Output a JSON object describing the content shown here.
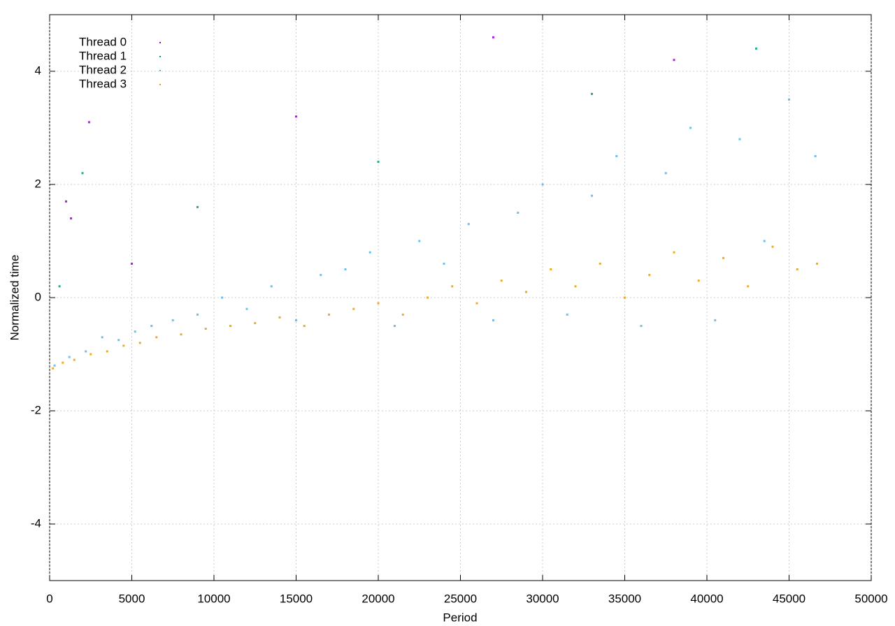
{
  "chart_data": {
    "type": "scatter",
    "xlabel": "Period",
    "ylabel": "Normalized time",
    "xlim": [
      0,
      50000
    ],
    "ylim": [
      -5,
      5
    ],
    "xticks": [
      0,
      5000,
      10000,
      15000,
      20000,
      25000,
      30000,
      35000,
      40000,
      45000,
      50000
    ],
    "yticks": [
      -4,
      -2,
      0,
      2,
      4
    ],
    "grid": true,
    "legend": "top left",
    "series": [
      {
        "name": "Thread 0",
        "color": "#9400d3",
        "x": [
          1000,
          1300,
          2400,
          5000,
          15000,
          27000,
          38000
        ],
        "values": [
          1.7,
          1.4,
          3.1,
          0.6,
          3.2,
          4.6,
          4.2
        ]
      },
      {
        "name": "Thread 1",
        "color": "#009e73",
        "x": [
          600,
          2000,
          9000,
          20000,
          33000,
          43000
        ],
        "values": [
          0.2,
          2.2,
          1.6,
          2.4,
          3.6,
          4.4
        ]
      },
      {
        "name": "Thread 2",
        "color": "#56b4e9",
        "x": [
          300,
          1200,
          2200,
          3200,
          4200,
          5200,
          6200,
          7500,
          9000,
          10500,
          12000,
          13500,
          15000,
          16500,
          18000,
          19500,
          21000,
          22500,
          24000,
          25500,
          27000,
          28500,
          30000,
          31500,
          33000,
          34500,
          36000,
          37500,
          39000,
          40500,
          42000,
          43500,
          45000,
          46600
        ],
        "values": [
          -1.2,
          -1.05,
          -0.95,
          -0.7,
          -0.75,
          -0.6,
          -0.5,
          -0.4,
          -0.3,
          0.0,
          -0.2,
          0.2,
          -0.4,
          0.4,
          0.5,
          0.8,
          -0.5,
          1.0,
          0.6,
          1.3,
          -0.4,
          1.5,
          2.0,
          -0.3,
          1.8,
          2.5,
          -0.5,
          2.2,
          3.0,
          -0.4,
          2.8,
          1.0,
          3.5,
          2.5
        ]
      },
      {
        "name": "Thread 3",
        "color": "#e69f00",
        "x": [
          200,
          800,
          1500,
          2500,
          3500,
          4500,
          5500,
          6500,
          8000,
          9500,
          11000,
          12500,
          14000,
          15500,
          17000,
          18500,
          20000,
          21500,
          23000,
          24500,
          26000,
          27500,
          29000,
          30500,
          32000,
          33500,
          35000,
          36500,
          38000,
          39500,
          41000,
          42500,
          44000,
          45500,
          46700
        ],
        "values": [
          -1.25,
          -1.15,
          -1.1,
          -1.0,
          -0.95,
          -0.85,
          -0.8,
          -0.7,
          -0.65,
          -0.55,
          -0.5,
          -0.45,
          -0.35,
          -0.5,
          -0.3,
          -0.2,
          -0.1,
          -0.3,
          0.0,
          0.2,
          -0.1,
          0.3,
          0.1,
          0.5,
          0.2,
          0.6,
          0.0,
          0.4,
          0.8,
          0.3,
          0.7,
          0.2,
          0.9,
          0.5,
          0.6
        ]
      }
    ]
  }
}
